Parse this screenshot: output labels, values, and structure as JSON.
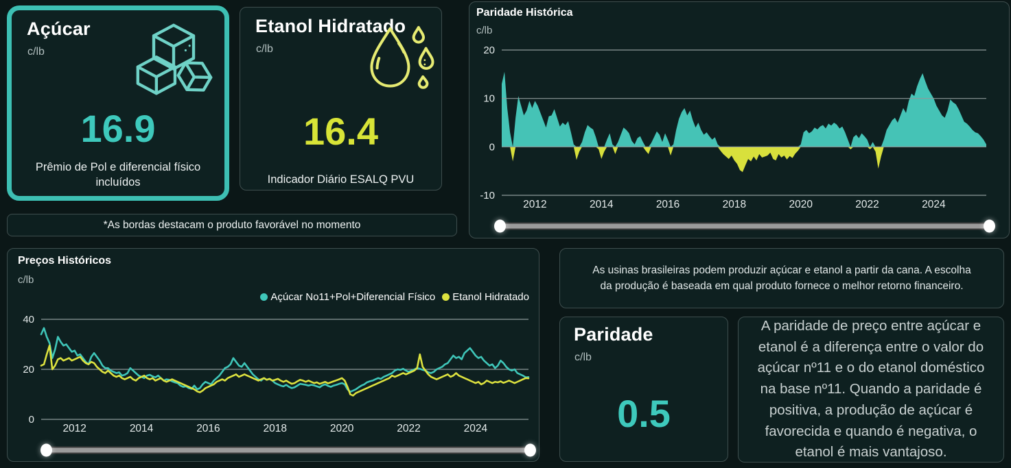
{
  "colors": {
    "background": "#0b1717",
    "panel": "#0e2020",
    "panel_border": "#3e4e4e",
    "teal_accent": "#3ec9bc",
    "yellow_accent": "#d8e437",
    "gridline": "#8f9a9a",
    "highlight_border": "#3dbfb3",
    "slider_handle": "#ffffff"
  },
  "cards": {
    "acucar": {
      "title": "Açúcar",
      "unit": "c/lb",
      "value": "16.9",
      "caption": "Prêmio de Pol e diferencial físico incluídos",
      "icon": "sugar-cubes-icon",
      "accent_color": "#3ec9bc",
      "highlighted": true
    },
    "etanol": {
      "title": "Etanol Hidratado",
      "unit": "c/lb",
      "value": "16.4",
      "caption": "Indicador Diário ESALQ PVU",
      "icon": "water-drops-icon",
      "accent_color": "#d8e437",
      "highlighted": false
    },
    "paridade": {
      "title": "Paridade",
      "unit": "c/lb",
      "value": "0.5",
      "accent_color": "#3ec9bc"
    }
  },
  "note_banner": "*As bordas destacam o produto favorável no momento",
  "info_boxes": {
    "producao": "As usinas brasileiras podem produzir açúcar e etanol a partir da cana. A escolha da produção é baseada em qual produto fornece o melhor retorno financeiro.",
    "paridade_explicacao": "A paridade de preço entre açúcar e etanol é a diferença entre o valor do açúcar nº11 e o do etanol doméstico na base nº11. Quando a paridade é positiva, a produção de açúcar é favorecida e quando é negativa, o etanol é mais vantajoso."
  },
  "chart_data": [
    {
      "type": "area",
      "title": "Paridade Histórica",
      "ylabel": "c/lb",
      "ylim": [
        -10,
        20
      ],
      "yticks": [
        20,
        10,
        0,
        -10
      ],
      "grid": true,
      "x_start_year": 2011,
      "points_per_year": 12,
      "x_tick_start_year": 2012,
      "x_tick_step_years": 2,
      "x_tick_labels": [
        "2012",
        "2014",
        "2016",
        "2018",
        "2020",
        "2022",
        "2024"
      ],
      "positive_color": "#45c3b6",
      "negative_color": "#d8e03c",
      "values": [
        13,
        15.5,
        8,
        3,
        -3,
        6,
        10.5,
        8.5,
        6.5,
        7.5,
        9.5,
        8,
        9.5,
        8.5,
        7,
        5.5,
        4,
        6.3,
        6.5,
        7.8,
        6,
        4.2,
        5,
        4.5,
        5.3,
        3,
        0.5,
        -2.7,
        -1,
        1,
        3,
        4.5,
        4,
        3.6,
        2,
        -0.5,
        -2.5,
        -1,
        1.5,
        2.8,
        0.5,
        -1.5,
        1,
        2.5,
        4,
        3.5,
        2.8,
        1.2,
        0.5,
        1.8,
        2.2,
        1,
        -0.8,
        -1.5,
        0.8,
        2,
        3.2,
        2.5,
        1,
        2.8,
        1.5,
        -1.8,
        0.5,
        3.5,
        5.8,
        7.2,
        8,
        6.5,
        7.5,
        5.5,
        4,
        5,
        3.5,
        2.5,
        3,
        2.2,
        1.5,
        2,
        0.5,
        -0.8,
        -1.5,
        -2,
        -2.5,
        -1.8,
        -2.8,
        -3.5,
        -4.8,
        -5.2,
        -3.8,
        -2.5,
        -3,
        -2,
        -2.8,
        -1.5,
        -2.2,
        -2,
        -1.8,
        -1.2,
        -2.5,
        -2.8,
        -1.5,
        -2.2,
        -1.8,
        -2.6,
        -1.9,
        -2.3,
        -1.4,
        -0.8,
        0.5,
        3,
        3.5,
        2.8,
        3.2,
        4,
        3.6,
        4.2,
        4.5,
        3.8,
        4.8,
        4.4,
        5,
        4.6,
        3.8,
        4.2,
        3,
        1.5,
        -0.5,
        2,
        2.5,
        1.8,
        2.8,
        2.2,
        1.5,
        -0.5,
        1,
        -1,
        -4.5,
        -2,
        1.5,
        3.5,
        4.5,
        5.5,
        6,
        5,
        6.5,
        8,
        7,
        9.5,
        11,
        10.5,
        12.5,
        14,
        15.2,
        13.5,
        12,
        11,
        10,
        8.5,
        7.5,
        6.5,
        6,
        7.5,
        9.8,
        9.2,
        8.8,
        7.8,
        6.5,
        5.2,
        4.8,
        4.2,
        3.5,
        3,
        2.8,
        2.2,
        1.5,
        0.5
      ]
    },
    {
      "type": "line",
      "title": "Preços Históricos",
      "ylabel": "c/lb",
      "ylim": [
        0,
        40
      ],
      "yticks": [
        40,
        20,
        0
      ],
      "grid": true,
      "legend_position": "top-right",
      "x_start_year": 2011,
      "points_per_year": 12,
      "x_tick_start_year": 2012,
      "x_tick_step_years": 2,
      "x_tick_labels": [
        "2012",
        "2014",
        "2016",
        "2018",
        "2020",
        "2022",
        "2024"
      ],
      "series": [
        {
          "name": "Açúcar No11+Pol+Diferencial Físico",
          "color": "#3fc6b9",
          "values": [
            34,
            36.5,
            33,
            30.5,
            24.5,
            28,
            33,
            31,
            29.5,
            30,
            28.5,
            27,
            27.5,
            25.5,
            26,
            24.5,
            23,
            22,
            25,
            26.5,
            25,
            23.5,
            21.5,
            20.5,
            20.5,
            19.5,
            19,
            18.5,
            18.8,
            17.5,
            17.8,
            18.5,
            20.5,
            19.5,
            18.5,
            17.5,
            17,
            16.5,
            17.5,
            17.8,
            17.2,
            16.8,
            17.5,
            16.5,
            15.5,
            16,
            15.8,
            15.2,
            14.8,
            14.5,
            13.5,
            13,
            13.2,
            12.5,
            12.2,
            13.5,
            12,
            12.5,
            14,
            15,
            14.5,
            14,
            15.5,
            16.5,
            17.5,
            19,
            20.5,
            21,
            22,
            24.5,
            23,
            21.5,
            21,
            22.5,
            21,
            19.5,
            18,
            17,
            16,
            15.5,
            16.5,
            15.8,
            16.2,
            15.5,
            14.5,
            14,
            13.5,
            13.2,
            13.8,
            13,
            12.5,
            12.8,
            13.5,
            14.2,
            14,
            13.8,
            13.5,
            13.8,
            13.6,
            13.2,
            12.8,
            13.6,
            14,
            13.4,
            13,
            13.5,
            13.8,
            14.2,
            14.5,
            14,
            12,
            11,
            11.5,
            12,
            12.8,
            13.5,
            14,
            14.8,
            15.2,
            15.5,
            16,
            16.5,
            16.2,
            17,
            17.5,
            18,
            18.5,
            19.5,
            20,
            19.8,
            20.2,
            19.5,
            19,
            19.5,
            20,
            20.5,
            20.2,
            19.8,
            19.5,
            18.8,
            18.5,
            19,
            20,
            20.5,
            21,
            22,
            22.5,
            24,
            25.5,
            24.5,
            25,
            24,
            26.5,
            27.5,
            28.5,
            27,
            25.5,
            24.5,
            25,
            23.5,
            22.5,
            21.5,
            22,
            20.5,
            21.5,
            23.5,
            22.5,
            21,
            20,
            19.5,
            20,
            18.5,
            18,
            17.5,
            16.8,
            16.9
          ]
        },
        {
          "name": "Etanol Hidratado",
          "color": "#dde23f",
          "values": [
            21.5,
            22,
            26,
            29.5,
            20,
            21.5,
            24,
            24.5,
            23.5,
            24,
            24.5,
            23.5,
            24,
            24.5,
            25,
            23.5,
            22.5,
            22,
            23,
            22.5,
            21,
            20,
            19,
            18.5,
            19.5,
            18.5,
            17.5,
            17,
            17.5,
            16.5,
            16,
            16.5,
            17,
            16,
            15.5,
            16.5,
            17,
            17.5,
            16.5,
            16,
            16.5,
            15.5,
            16,
            16.5,
            15.5,
            15,
            15.5,
            16,
            15.5,
            15,
            14.5,
            14,
            13.5,
            13,
            12.5,
            12,
            11.2,
            10.8,
            11.5,
            12.5,
            13,
            13.5,
            14,
            15,
            15.5,
            16,
            15.5,
            16.5,
            17,
            17.5,
            18,
            17,
            17.5,
            18,
            17.5,
            17,
            16.5,
            16,
            15.5,
            16,
            16.5,
            15.8,
            16.2,
            15.5,
            15.8,
            16.2,
            15.5,
            15,
            15.5,
            14.8,
            14.2,
            14.5,
            15.2,
            15.8,
            15.5,
            15,
            15.5,
            15,
            14.5,
            14.8,
            14.2,
            14.6,
            15,
            14.4,
            14.8,
            15.2,
            15.6,
            16,
            16.5,
            15.5,
            13,
            10,
            9.5,
            10.5,
            11,
            11.5,
            12,
            12.5,
            13,
            13.5,
            14,
            14.5,
            15,
            15.5,
            16,
            16.5,
            17.5,
            17,
            17.5,
            18,
            18.5,
            18,
            18.5,
            19,
            19.5,
            20.5,
            26,
            21,
            19.5,
            18,
            17,
            16.5,
            16,
            16.5,
            17,
            17.5,
            18,
            17,
            17.5,
            18.5,
            17.5,
            17,
            16.5,
            16,
            15.5,
            15,
            14.5,
            15,
            14,
            14.5,
            15.5,
            15,
            14.5,
            15,
            14.8,
            15.2,
            14.6,
            15,
            15.5,
            15,
            14.5,
            15,
            15.5,
            16,
            16.5,
            16.4
          ]
        }
      ]
    }
  ]
}
